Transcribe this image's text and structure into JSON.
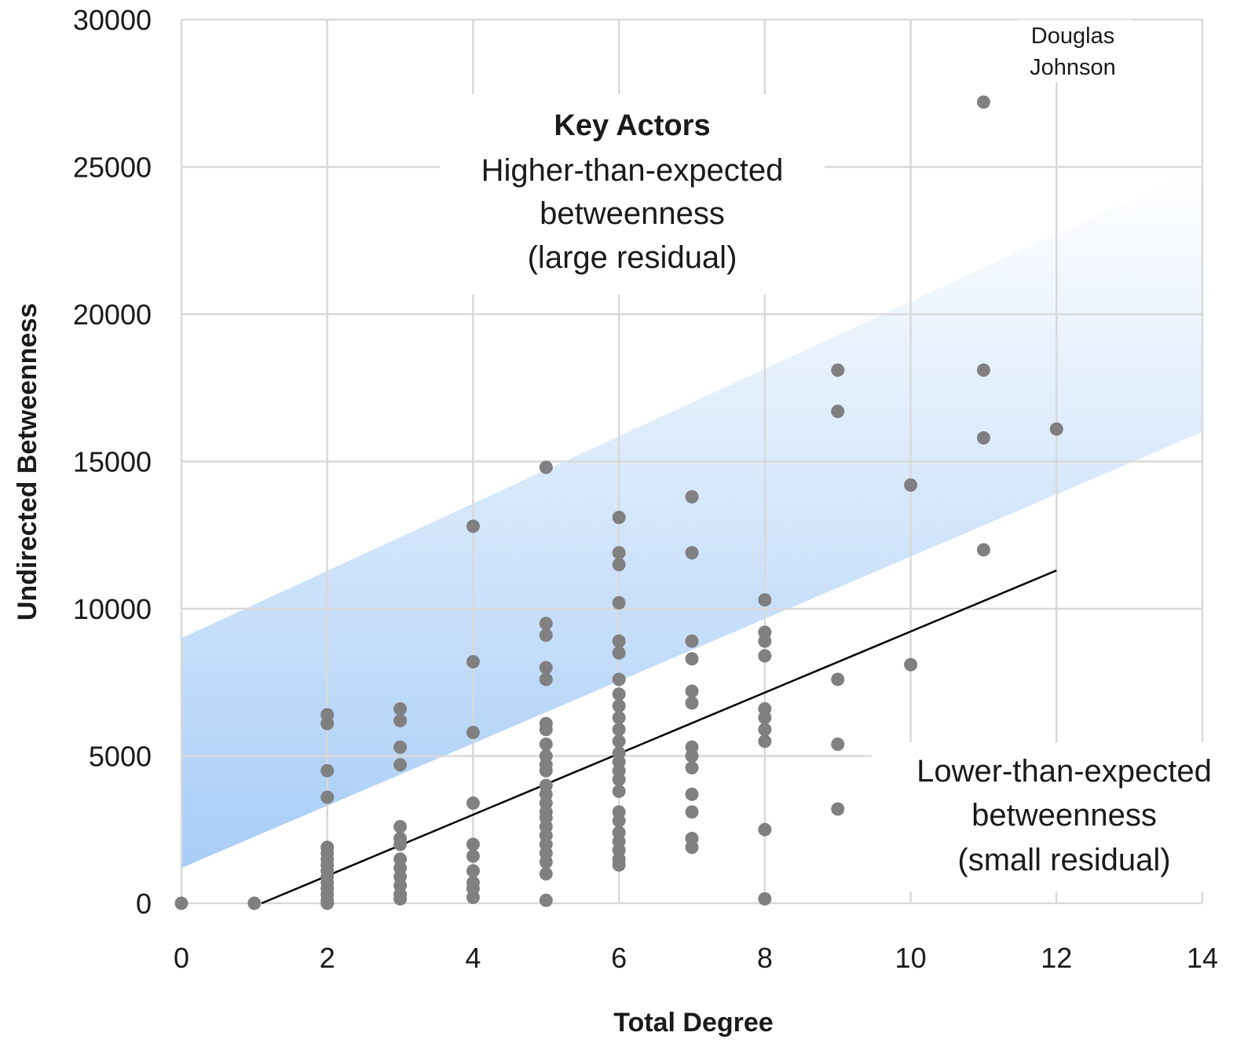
{
  "chart_data": {
    "type": "scatter",
    "xlabel": "Total Degree",
    "ylabel": "Undirected Betweenness",
    "xlim": [
      0,
      14
    ],
    "ylim": [
      0,
      30000
    ],
    "x_ticks": [
      "0",
      "2",
      "4",
      "6",
      "8",
      "10",
      "12",
      "14"
    ],
    "y_ticks": [
      "0",
      "5000",
      "10000",
      "15000",
      "20000",
      "25000",
      "30000"
    ],
    "grid": true,
    "colors": {
      "points": "#808080",
      "trend_line": "#000000",
      "band": "#a8cdf7",
      "grid": "#d9d9d9"
    },
    "points": [
      {
        "x": 0,
        "y": 0
      },
      {
        "x": 1,
        "y": 0
      },
      {
        "x": 2,
        "y": 6400
      },
      {
        "x": 2,
        "y": 6100
      },
      {
        "x": 2,
        "y": 4500
      },
      {
        "x": 2,
        "y": 3600
      },
      {
        "x": 2,
        "y": 1900
      },
      {
        "x": 2,
        "y": 1700
      },
      {
        "x": 2,
        "y": 1500
      },
      {
        "x": 2,
        "y": 1300
      },
      {
        "x": 2,
        "y": 1100
      },
      {
        "x": 2,
        "y": 900
      },
      {
        "x": 2,
        "y": 700
      },
      {
        "x": 2,
        "y": 500
      },
      {
        "x": 2,
        "y": 300
      },
      {
        "x": 2,
        "y": 100
      },
      {
        "x": 2,
        "y": 0
      },
      {
        "x": 3,
        "y": 6600
      },
      {
        "x": 3,
        "y": 6200
      },
      {
        "x": 3,
        "y": 5300
      },
      {
        "x": 3,
        "y": 4700
      },
      {
        "x": 3,
        "y": 2600
      },
      {
        "x": 3,
        "y": 2200
      },
      {
        "x": 3,
        "y": 2000
      },
      {
        "x": 3,
        "y": 1500
      },
      {
        "x": 3,
        "y": 1200
      },
      {
        "x": 3,
        "y": 900
      },
      {
        "x": 3,
        "y": 600
      },
      {
        "x": 3,
        "y": 300
      },
      {
        "x": 3,
        "y": 150
      },
      {
        "x": 4,
        "y": 12800
      },
      {
        "x": 4,
        "y": 8200
      },
      {
        "x": 4,
        "y": 5800
      },
      {
        "x": 4,
        "y": 3400
      },
      {
        "x": 4,
        "y": 2000
      },
      {
        "x": 4,
        "y": 1600
      },
      {
        "x": 4,
        "y": 1100
      },
      {
        "x": 4,
        "y": 700
      },
      {
        "x": 4,
        "y": 500
      },
      {
        "x": 4,
        "y": 200
      },
      {
        "x": 5,
        "y": 14800
      },
      {
        "x": 5,
        "y": 9500
      },
      {
        "x": 5,
        "y": 9100
      },
      {
        "x": 5,
        "y": 8000
      },
      {
        "x": 5,
        "y": 7600
      },
      {
        "x": 5,
        "y": 6100
      },
      {
        "x": 5,
        "y": 5900
      },
      {
        "x": 5,
        "y": 5400
      },
      {
        "x": 5,
        "y": 5000
      },
      {
        "x": 5,
        "y": 4700
      },
      {
        "x": 5,
        "y": 4500
      },
      {
        "x": 5,
        "y": 4000
      },
      {
        "x": 5,
        "y": 3700
      },
      {
        "x": 5,
        "y": 3400
      },
      {
        "x": 5,
        "y": 3100
      },
      {
        "x": 5,
        "y": 2900
      },
      {
        "x": 5,
        "y": 2600
      },
      {
        "x": 5,
        "y": 2300
      },
      {
        "x": 5,
        "y": 2000
      },
      {
        "x": 5,
        "y": 1700
      },
      {
        "x": 5,
        "y": 1400
      },
      {
        "x": 5,
        "y": 1000
      },
      {
        "x": 5,
        "y": 100
      },
      {
        "x": 6,
        "y": 13100
      },
      {
        "x": 6,
        "y": 11900
      },
      {
        "x": 6,
        "y": 11500
      },
      {
        "x": 6,
        "y": 10200
      },
      {
        "x": 6,
        "y": 8900
      },
      {
        "x": 6,
        "y": 8500
      },
      {
        "x": 6,
        "y": 7600
      },
      {
        "x": 6,
        "y": 7100
      },
      {
        "x": 6,
        "y": 6700
      },
      {
        "x": 6,
        "y": 6300
      },
      {
        "x": 6,
        "y": 5900
      },
      {
        "x": 6,
        "y": 5500
      },
      {
        "x": 6,
        "y": 5100
      },
      {
        "x": 6,
        "y": 4800
      },
      {
        "x": 6,
        "y": 4500
      },
      {
        "x": 6,
        "y": 4200
      },
      {
        "x": 6,
        "y": 3800
      },
      {
        "x": 6,
        "y": 3100
      },
      {
        "x": 6,
        "y": 2800
      },
      {
        "x": 6,
        "y": 2400
      },
      {
        "x": 6,
        "y": 2100
      },
      {
        "x": 6,
        "y": 1800
      },
      {
        "x": 6,
        "y": 1500
      },
      {
        "x": 6,
        "y": 1300
      },
      {
        "x": 7,
        "y": 13800
      },
      {
        "x": 7,
        "y": 11900
      },
      {
        "x": 7,
        "y": 8900
      },
      {
        "x": 7,
        "y": 8300
      },
      {
        "x": 7,
        "y": 7200
      },
      {
        "x": 7,
        "y": 6800
      },
      {
        "x": 7,
        "y": 5300
      },
      {
        "x": 7,
        "y": 5000
      },
      {
        "x": 7,
        "y": 4600
      },
      {
        "x": 7,
        "y": 3700
      },
      {
        "x": 7,
        "y": 3100
      },
      {
        "x": 7,
        "y": 2200
      },
      {
        "x": 7,
        "y": 1900
      },
      {
        "x": 8,
        "y": 10300
      },
      {
        "x": 8,
        "y": 9200
      },
      {
        "x": 8,
        "y": 8900
      },
      {
        "x": 8,
        "y": 8400
      },
      {
        "x": 8,
        "y": 6600
      },
      {
        "x": 8,
        "y": 6300
      },
      {
        "x": 8,
        "y": 5900
      },
      {
        "x": 8,
        "y": 5500
      },
      {
        "x": 8,
        "y": 2500
      },
      {
        "x": 8,
        "y": 150
      },
      {
        "x": 9,
        "y": 18100
      },
      {
        "x": 9,
        "y": 16700
      },
      {
        "x": 9,
        "y": 7600
      },
      {
        "x": 9,
        "y": 5400
      },
      {
        "x": 9,
        "y": 3200
      },
      {
        "x": 10,
        "y": 14200
      },
      {
        "x": 10,
        "y": 8100
      },
      {
        "x": 11,
        "y": 27200
      },
      {
        "x": 11,
        "y": 18100
      },
      {
        "x": 11,
        "y": 15800
      },
      {
        "x": 11,
        "y": 12000
      },
      {
        "x": 12,
        "y": 16100
      }
    ],
    "trend_line": {
      "x": [
        1.1,
        12
      ],
      "y": [
        0,
        11300
      ]
    },
    "band": {
      "x": [
        0,
        14
      ],
      "lower": [
        1200,
        16000
      ],
      "upper": [
        9000,
        25000
      ]
    },
    "annotations": {
      "key_actors_title": "Key Actors",
      "key_actors_line1": "Higher-than-expected",
      "key_actors_line2": "betweenness",
      "key_actors_line3": "(large residual)",
      "lower_line1": "Lower-than-expected",
      "lower_line2": "betweenness",
      "lower_line3": "(small residual)",
      "point_label_line1": "Douglas",
      "point_label_line2": "Johnson"
    }
  }
}
